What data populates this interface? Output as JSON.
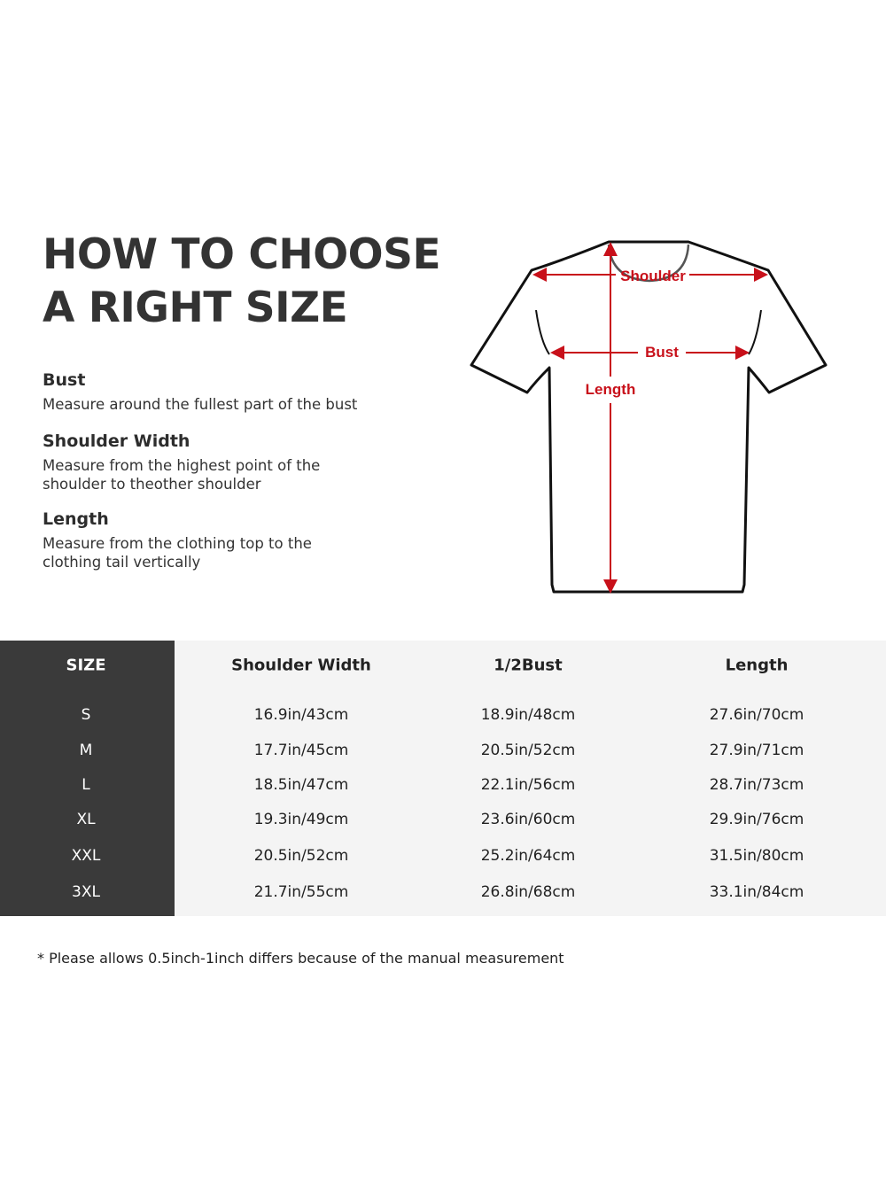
{
  "title": {
    "line1": "HOW TO CHOOSE",
    "line2": "A RIGHT SIZE"
  },
  "guides": [
    {
      "heading": "Bust",
      "text": "Measure around the fullest part of the bust"
    },
    {
      "heading": "Shoulder Width",
      "text": "Measure from the highest point of the shoulder to theother shoulder"
    },
    {
      "heading": "Length",
      "text": "Measure from the clothing top to the clothing tail vertically"
    }
  ],
  "diagram": {
    "shoulder": "Shoulder",
    "bust": "Bust",
    "length": "Length",
    "accent_color": "#c8101a"
  },
  "table": {
    "headers": [
      "SIZE",
      "Shoulder Width",
      "1/2Bust",
      "Length"
    ],
    "rows": [
      [
        "S",
        "16.9in/43cm",
        "18.9in/48cm",
        "27.6in/70cm"
      ],
      [
        "M",
        "17.7in/45cm",
        "20.5in/52cm",
        "27.9in/71cm"
      ],
      [
        "L",
        "18.5in/47cm",
        "22.1in/56cm",
        "28.7in/73cm"
      ],
      [
        "XL",
        "19.3in/49cm",
        "23.6in/60cm",
        "29.9in/76cm"
      ],
      [
        "XXL",
        "20.5in/52cm",
        "25.2in/64cm",
        "31.5in/80cm"
      ],
      [
        "3XL",
        "21.7in/55cm",
        "26.8in/68cm",
        "33.1in/84cm"
      ]
    ]
  },
  "note": "* Please allows 0.5inch-1inch differs because of the  manual measurement"
}
